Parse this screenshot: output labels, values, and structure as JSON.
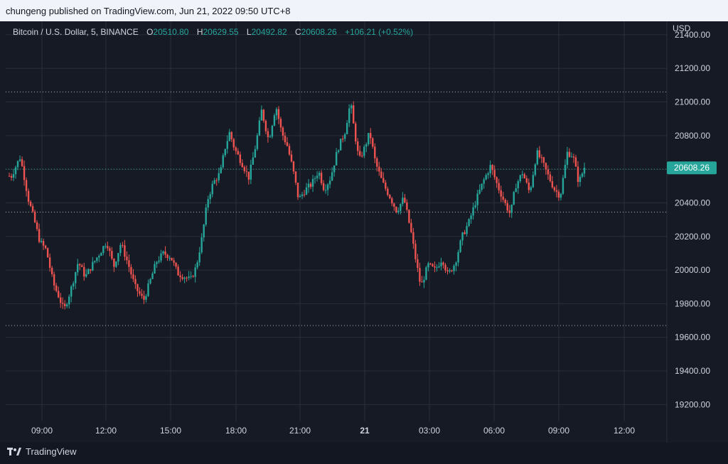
{
  "header": {
    "publisher_line": "chungeng published on TradingView.com, Jun 21, 2022 09:50 UTC+8"
  },
  "legend": {
    "symbol": "Bitcoin / U.S. Dollar, 5, BINANCE",
    "open_label": "O",
    "open_value": "20510.80",
    "high_label": "H",
    "high_value": "20629.55",
    "low_label": "L",
    "low_value": "20492.82",
    "close_label": "C",
    "close_value": "20608.26",
    "change": "+106.21 (+0.52%)"
  },
  "currency": "USD",
  "footer": {
    "brand": "TradingView"
  },
  "colors": {
    "up": "#26a69a",
    "down": "#ef5350",
    "background": "#161a25",
    "grid": "#2a2e39",
    "text": "#d1d4dc"
  },
  "chart_data": {
    "type": "candlestick",
    "ylim": [
      19100,
      21480
    ],
    "y_ticks": [
      "19200.00",
      "19400.00",
      "19600.00",
      "19800.00",
      "20000.00",
      "20200.00",
      "20400.00",
      "20600.00",
      "20800.00",
      "21000.00",
      "21200.00",
      "21400.00"
    ],
    "x_ticks": [
      "09:00",
      "12:00",
      "15:00",
      "18:00",
      "21:00",
      "21",
      "03:00",
      "06:00",
      "09:00",
      "12:00"
    ],
    "last_price_label": "20608.26",
    "last_price": 20608.26,
    "horizontal_levels": [
      21060,
      20600,
      20345,
      19670
    ],
    "price_path": [
      [
        0,
        20560
      ],
      [
        6,
        20560
      ],
      [
        18,
        20670
      ],
      [
        22,
        20600
      ],
      [
        30,
        20420
      ],
      [
        38,
        20300
      ],
      [
        46,
        20170
      ],
      [
        55,
        20120
      ],
      [
        65,
        19920
      ],
      [
        72,
        19850
      ],
      [
        80,
        19760
      ],
      [
        90,
        19890
      ],
      [
        100,
        20050
      ],
      [
        110,
        19960
      ],
      [
        118,
        20020
      ],
      [
        130,
        20100
      ],
      [
        140,
        20170
      ],
      [
        150,
        20020
      ],
      [
        160,
        20160
      ],
      [
        170,
        20040
      ],
      [
        180,
        19900
      ],
      [
        192,
        19820
      ],
      [
        200,
        19920
      ],
      [
        210,
        20050
      ],
      [
        220,
        20100
      ],
      [
        230,
        20080
      ],
      [
        240,
        19980
      ],
      [
        250,
        19960
      ],
      [
        258,
        19940
      ],
      [
        266,
        20020
      ],
      [
        274,
        20190
      ],
      [
        282,
        20420
      ],
      [
        290,
        20520
      ],
      [
        300,
        20580
      ],
      [
        306,
        20720
      ],
      [
        313,
        20820
      ],
      [
        320,
        20720
      ],
      [
        330,
        20640
      ],
      [
        340,
        20550
      ],
      [
        350,
        20750
      ],
      [
        358,
        20950
      ],
      [
        368,
        20770
      ],
      [
        378,
        20980
      ],
      [
        386,
        20820
      ],
      [
        394,
        20740
      ],
      [
        402,
        20600
      ],
      [
        410,
        20420
      ],
      [
        420,
        20480
      ],
      [
        428,
        20510
      ],
      [
        438,
        20590
      ],
      [
        446,
        20480
      ],
      [
        455,
        20550
      ],
      [
        465,
        20720
      ],
      [
        475,
        20820
      ],
      [
        483,
        21000
      ],
      [
        488,
        20840
      ],
      [
        495,
        20650
      ],
      [
        503,
        20730
      ],
      [
        510,
        20820
      ],
      [
        518,
        20640
      ],
      [
        528,
        20520
      ],
      [
        538,
        20440
      ],
      [
        548,
        20350
      ],
      [
        558,
        20430
      ],
      [
        568,
        20230
      ],
      [
        574,
        20080
      ],
      [
        582,
        19900
      ],
      [
        592,
        20030
      ],
      [
        602,
        20000
      ],
      [
        612,
        20070
      ],
      [
        620,
        19970
      ],
      [
        630,
        20040
      ],
      [
        640,
        20200
      ],
      [
        650,
        20290
      ],
      [
        660,
        20420
      ],
      [
        670,
        20530
      ],
      [
        680,
        20620
      ],
      [
        690,
        20500
      ],
      [
        700,
        20400
      ],
      [
        708,
        20330
      ],
      [
        715,
        20500
      ],
      [
        725,
        20580
      ],
      [
        735,
        20460
      ],
      [
        745,
        20700
      ],
      [
        752,
        20650
      ],
      [
        760,
        20570
      ],
      [
        770,
        20480
      ],
      [
        778,
        20440
      ],
      [
        788,
        20700
      ],
      [
        796,
        20680
      ],
      [
        804,
        20520
      ],
      [
        812,
        20610
      ]
    ]
  }
}
